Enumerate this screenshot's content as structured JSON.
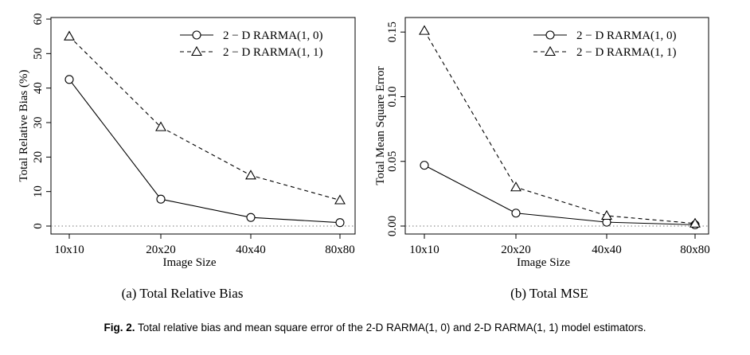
{
  "chart_data": [
    {
      "type": "line",
      "categories": [
        "10x10",
        "20x20",
        "40x40",
        "80x80"
      ],
      "series": [
        {
          "name": "2 − D  RARMA(1, 0)",
          "values": [
            42.5,
            7.8,
            2.5,
            1.0
          ],
          "marker": "circle",
          "line": "solid"
        },
        {
          "name": "2 − D  RARMA(1, 1)",
          "values": [
            55.0,
            28.7,
            14.7,
            7.5
          ],
          "marker": "triangle",
          "line": "dashed"
        }
      ],
      "xlabel": "Image Size",
      "ylabel": "Total Relative Bias (%)",
      "ylim": [
        0,
        60
      ],
      "yticks": [
        "0",
        "10",
        "20",
        "30",
        "40",
        "50",
        "60"
      ],
      "reference_line": 0,
      "legend": "top-right",
      "subcaption": "(a)  Total Relative Bias"
    },
    {
      "type": "line",
      "categories": [
        "10x10",
        "20x20",
        "40x40",
        "80x80"
      ],
      "series": [
        {
          "name": "2 − D  RARMA(1, 0)",
          "values": [
            0.047,
            0.01,
            0.003,
            0.001
          ],
          "marker": "circle",
          "line": "solid"
        },
        {
          "name": "2 − D  RARMA(1, 1)",
          "values": [
            0.151,
            0.03,
            0.008,
            0.002
          ],
          "marker": "triangle",
          "line": "dashed"
        }
      ],
      "xlabel": "Image Size",
      "ylabel": "Total Mean Square Error",
      "ylim": [
        0,
        0.16
      ],
      "yticks": [
        "0.00",
        "0.05",
        "0.10",
        "0.15"
      ],
      "reference_line": 0,
      "legend": "top-right",
      "subcaption": "(b)  Total MSE"
    }
  ],
  "caption": {
    "label": "Fig. 2.",
    "text": " Total relative bias and mean square error of the 2-D RARMA(1, 0) and 2-D RARMA(1, 1) model estimators."
  }
}
